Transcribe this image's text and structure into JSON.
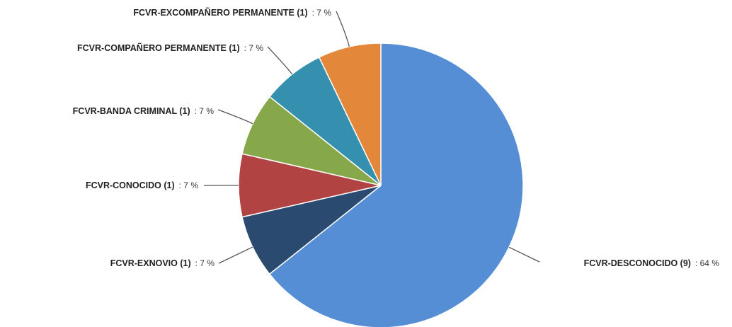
{
  "chart_data": {
    "type": "pie",
    "start_angle_deg": 0,
    "slices": [
      {
        "name": "FCVR-DESCONOCIDO",
        "count": "(9)",
        "percent_label": ": 64 %",
        "value": 64.3,
        "color": "#558ED5"
      },
      {
        "name": "FCVR-EXNOVIO",
        "count": "(1)",
        "percent_label": ": 7 %",
        "value": 7.14,
        "color": "#2B4A70"
      },
      {
        "name": "FCVR-CONOCIDO",
        "count": "(1)",
        "percent_label": ": 7 %",
        "value": 7.14,
        "color": "#B14343"
      },
      {
        "name": "FCVR-BANDA CRIMINAL",
        "count": "(1)",
        "percent_label": ": 7 %",
        "value": 7.14,
        "color": "#86A84A"
      },
      {
        "name": "FCVR-COMPAÑERO PERMANENTE",
        "count": "(1)",
        "percent_label": ": 7 %",
        "value": 7.14,
        "color": "#3490AE"
      },
      {
        "name": "FCVR-EXCOMPAÑERO PERMANENTE",
        "count": "(1)",
        "percent_label": ": 7 %",
        "value": 7.14,
        "color": "#E3873A"
      }
    ]
  }
}
